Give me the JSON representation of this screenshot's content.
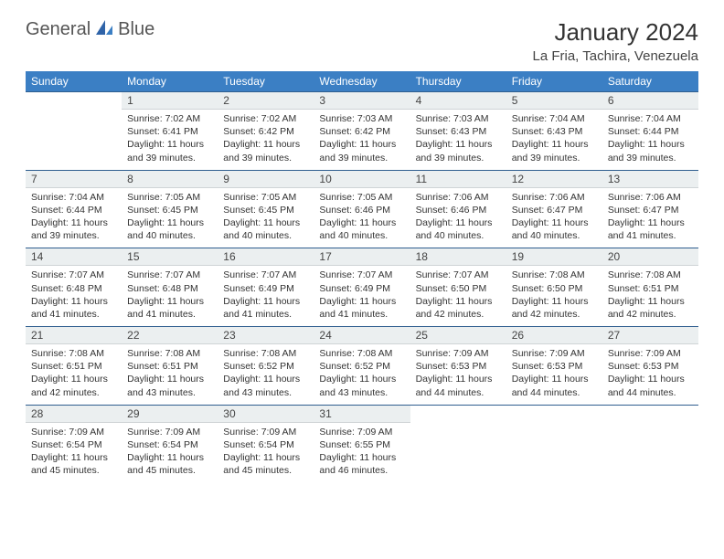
{
  "brand": {
    "part1": "General",
    "part2": "Blue"
  },
  "title": "January 2024",
  "location": "La Fria, Tachira, Venezuela",
  "daysOfWeek": [
    "Sunday",
    "Monday",
    "Tuesday",
    "Wednesday",
    "Thursday",
    "Friday",
    "Saturday"
  ],
  "colors": {
    "header_bg": "#3b7fc4",
    "rule": "#2f5e8f",
    "daynum_bg": "#ebeff0"
  },
  "weeks": [
    [
      null,
      {
        "n": "1",
        "sr": "7:02 AM",
        "ss": "6:41 PM",
        "dl": "11 hours",
        "dm": "39 minutes."
      },
      {
        "n": "2",
        "sr": "7:02 AM",
        "ss": "6:42 PM",
        "dl": "11 hours",
        "dm": "39 minutes."
      },
      {
        "n": "3",
        "sr": "7:03 AM",
        "ss": "6:42 PM",
        "dl": "11 hours",
        "dm": "39 minutes."
      },
      {
        "n": "4",
        "sr": "7:03 AM",
        "ss": "6:43 PM",
        "dl": "11 hours",
        "dm": "39 minutes."
      },
      {
        "n": "5",
        "sr": "7:04 AM",
        "ss": "6:43 PM",
        "dl": "11 hours",
        "dm": "39 minutes."
      },
      {
        "n": "6",
        "sr": "7:04 AM",
        "ss": "6:44 PM",
        "dl": "11 hours",
        "dm": "39 minutes."
      }
    ],
    [
      {
        "n": "7",
        "sr": "7:04 AM",
        "ss": "6:44 PM",
        "dl": "11 hours",
        "dm": "39 minutes."
      },
      {
        "n": "8",
        "sr": "7:05 AM",
        "ss": "6:45 PM",
        "dl": "11 hours",
        "dm": "40 minutes."
      },
      {
        "n": "9",
        "sr": "7:05 AM",
        "ss": "6:45 PM",
        "dl": "11 hours",
        "dm": "40 minutes."
      },
      {
        "n": "10",
        "sr": "7:05 AM",
        "ss": "6:46 PM",
        "dl": "11 hours",
        "dm": "40 minutes."
      },
      {
        "n": "11",
        "sr": "7:06 AM",
        "ss": "6:46 PM",
        "dl": "11 hours",
        "dm": "40 minutes."
      },
      {
        "n": "12",
        "sr": "7:06 AM",
        "ss": "6:47 PM",
        "dl": "11 hours",
        "dm": "40 minutes."
      },
      {
        "n": "13",
        "sr": "7:06 AM",
        "ss": "6:47 PM",
        "dl": "11 hours",
        "dm": "41 minutes."
      }
    ],
    [
      {
        "n": "14",
        "sr": "7:07 AM",
        "ss": "6:48 PM",
        "dl": "11 hours",
        "dm": "41 minutes."
      },
      {
        "n": "15",
        "sr": "7:07 AM",
        "ss": "6:48 PM",
        "dl": "11 hours",
        "dm": "41 minutes."
      },
      {
        "n": "16",
        "sr": "7:07 AM",
        "ss": "6:49 PM",
        "dl": "11 hours",
        "dm": "41 minutes."
      },
      {
        "n": "17",
        "sr": "7:07 AM",
        "ss": "6:49 PM",
        "dl": "11 hours",
        "dm": "41 minutes."
      },
      {
        "n": "18",
        "sr": "7:07 AM",
        "ss": "6:50 PM",
        "dl": "11 hours",
        "dm": "42 minutes."
      },
      {
        "n": "19",
        "sr": "7:08 AM",
        "ss": "6:50 PM",
        "dl": "11 hours",
        "dm": "42 minutes."
      },
      {
        "n": "20",
        "sr": "7:08 AM",
        "ss": "6:51 PM",
        "dl": "11 hours",
        "dm": "42 minutes."
      }
    ],
    [
      {
        "n": "21",
        "sr": "7:08 AM",
        "ss": "6:51 PM",
        "dl": "11 hours",
        "dm": "42 minutes."
      },
      {
        "n": "22",
        "sr": "7:08 AM",
        "ss": "6:51 PM",
        "dl": "11 hours",
        "dm": "43 minutes."
      },
      {
        "n": "23",
        "sr": "7:08 AM",
        "ss": "6:52 PM",
        "dl": "11 hours",
        "dm": "43 minutes."
      },
      {
        "n": "24",
        "sr": "7:08 AM",
        "ss": "6:52 PM",
        "dl": "11 hours",
        "dm": "43 minutes."
      },
      {
        "n": "25",
        "sr": "7:09 AM",
        "ss": "6:53 PM",
        "dl": "11 hours",
        "dm": "44 minutes."
      },
      {
        "n": "26",
        "sr": "7:09 AM",
        "ss": "6:53 PM",
        "dl": "11 hours",
        "dm": "44 minutes."
      },
      {
        "n": "27",
        "sr": "7:09 AM",
        "ss": "6:53 PM",
        "dl": "11 hours",
        "dm": "44 minutes."
      }
    ],
    [
      {
        "n": "28",
        "sr": "7:09 AM",
        "ss": "6:54 PM",
        "dl": "11 hours",
        "dm": "45 minutes."
      },
      {
        "n": "29",
        "sr": "7:09 AM",
        "ss": "6:54 PM",
        "dl": "11 hours",
        "dm": "45 minutes."
      },
      {
        "n": "30",
        "sr": "7:09 AM",
        "ss": "6:54 PM",
        "dl": "11 hours",
        "dm": "45 minutes."
      },
      {
        "n": "31",
        "sr": "7:09 AM",
        "ss": "6:55 PM",
        "dl": "11 hours",
        "dm": "46 minutes."
      },
      null,
      null,
      null
    ]
  ],
  "labels": {
    "sunrise": "Sunrise:",
    "sunset": "Sunset:",
    "daylight": "Daylight:",
    "and": "and"
  }
}
